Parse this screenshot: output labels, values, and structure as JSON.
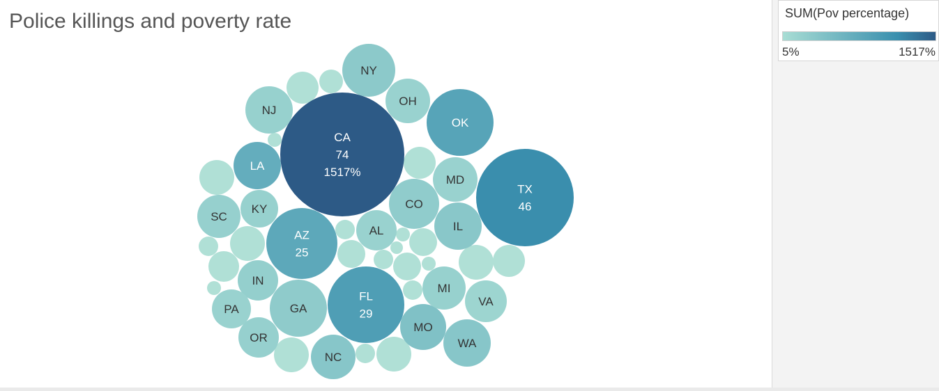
{
  "title": "Police killings and poverty rate",
  "legend": {
    "title": "SUM(Pov percentage)",
    "min_label": "5%",
    "max_label": "1517%",
    "color_low": "#a8ddd4",
    "color_mid": "#3a8fae",
    "color_high": "#2d5a86"
  },
  "chart_data": {
    "type": "packed-bubble",
    "size_measure": "Police killings",
    "color_measure": "SUM(Pov percentage)",
    "color_range": [
      5,
      1517
    ],
    "labeled_bubbles": [
      {
        "state": "CA",
        "killings": 74,
        "pov_label": "1517%",
        "pov": 1517
      },
      {
        "state": "TX",
        "killings": 46,
        "pov": 780
      },
      {
        "state": "FL",
        "killings": 29,
        "pov": 620
      },
      {
        "state": "AZ",
        "killings": 25,
        "pov": 520
      },
      {
        "state": "GA",
        "pov": 180
      },
      {
        "state": "OK",
        "pov": 560
      },
      {
        "state": "NY",
        "pov": 200
      },
      {
        "state": "OH",
        "pov": 110
      },
      {
        "state": "NJ",
        "pov": 120
      },
      {
        "state": "LA",
        "pov": 470
      },
      {
        "state": "MD",
        "pov": 110
      },
      {
        "state": "CO",
        "pov": 170
      },
      {
        "state": "IL",
        "pov": 220
      },
      {
        "state": "KY",
        "pov": 120
      },
      {
        "state": "SC",
        "pov": 130
      },
      {
        "state": "AL",
        "pov": 110
      },
      {
        "state": "IN",
        "pov": 140
      },
      {
        "state": "PA",
        "pov": 110
      },
      {
        "state": "OR",
        "pov": 130
      },
      {
        "state": "NC",
        "pov": 230
      },
      {
        "state": "MO",
        "pov": 280
      },
      {
        "state": "MI",
        "pov": 120
      },
      {
        "state": "VA",
        "pov": 80
      },
      {
        "state": "WA",
        "pov": 230
      }
    ],
    "unlabeled_bubble_count": 29
  }
}
